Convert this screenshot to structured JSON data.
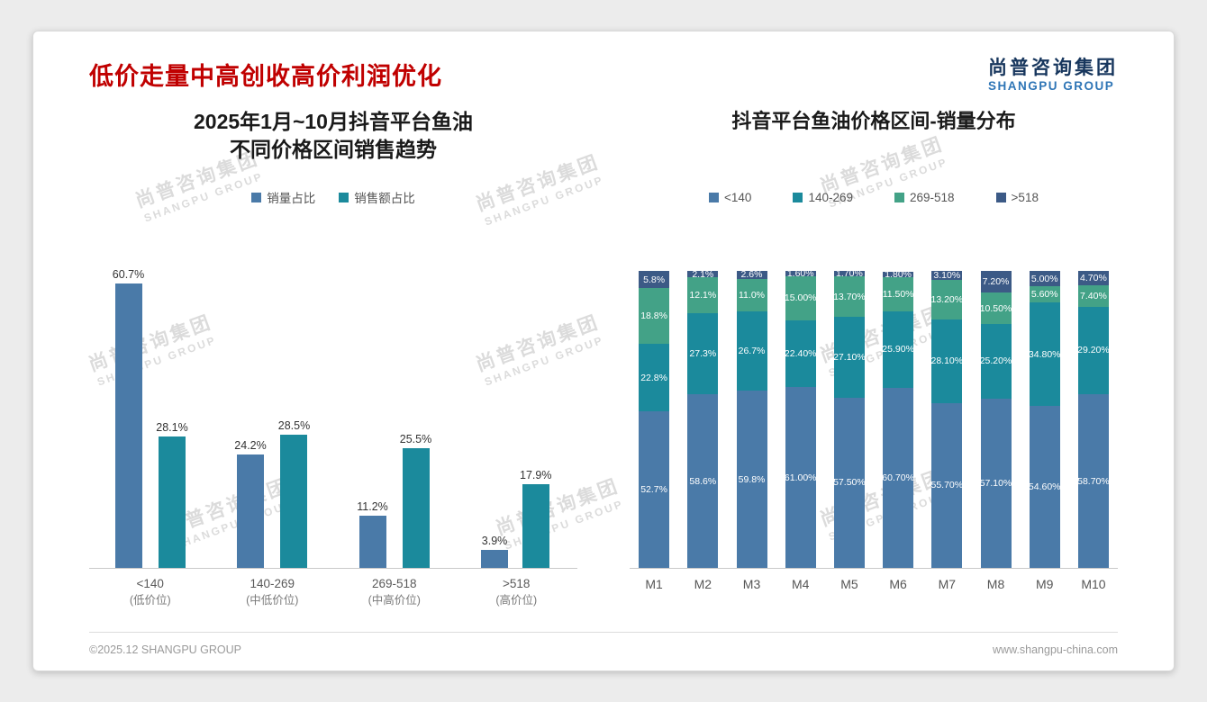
{
  "page": {
    "title": "低价走量中高创收高价利润优化",
    "logo": {
      "cn": "尚普咨询集团",
      "en": "SHANGPU GROUP"
    },
    "watermark": {
      "cn": "尚普咨询集团",
      "en": "SHANGPU GROUP"
    },
    "footer": {
      "left": "©2025.12 SHANGPU GROUP",
      "right": "www.shangpu-china.com"
    }
  },
  "colors": {
    "title_red": "#c00000",
    "logo_navy": "#17365d",
    "logo_blue": "#2e75b6",
    "series_blue": "#4a7aa8",
    "series_teal": "#1b8a9c",
    "series_green": "#43a287",
    "series_navy": "#3c5a86"
  },
  "chart_data": [
    {
      "type": "bar",
      "title_lines": [
        "2025年1月~10月抖音平台鱼油",
        "不同价格区间销售趋势"
      ],
      "categories": [
        "<140",
        "140-269",
        "269-518",
        ">518"
      ],
      "category_sublabels": [
        "(低价位)",
        "(中低价位)",
        "(中高价位)",
        "(高价位)"
      ],
      "series": [
        {
          "name": "销量占比",
          "color": "#4a7aa8",
          "values": [
            60.7,
            24.2,
            11.2,
            3.9
          ]
        },
        {
          "name": "销售额占比",
          "color": "#1b8a9c",
          "values": [
            28.1,
            28.5,
            25.5,
            17.9
          ]
        }
      ],
      "ylim": [
        0,
        65
      ],
      "value_suffix": "%",
      "grid": false,
      "legend_position": "top"
    },
    {
      "type": "stacked-bar",
      "title": "抖音平台鱼油价格区间-销量分布",
      "categories": [
        "M1",
        "M2",
        "M3",
        "M4",
        "M5",
        "M6",
        "M7",
        "M8",
        "M9",
        "M10"
      ],
      "series": [
        {
          "name": "<140",
          "color": "#4a7aa8",
          "values": [
            52.7,
            58.6,
            59.8,
            61.0,
            57.5,
            60.7,
            55.7,
            57.1,
            54.6,
            58.7
          ],
          "labels": [
            "52.7%",
            "58.6%",
            "59.8%",
            "61.00%",
            "57.50%",
            "60.70%",
            "55.70%",
            "57.10%",
            "54.60%",
            "58.70%"
          ]
        },
        {
          "name": "140-269",
          "color": "#1b8a9c",
          "values": [
            22.8,
            27.3,
            26.7,
            22.4,
            27.1,
            25.9,
            28.1,
            25.2,
            34.8,
            29.2
          ],
          "labels": [
            "22.8%",
            "27.3%",
            "26.7%",
            "22.40%",
            "27.10%",
            "25.90%",
            "28.10%",
            "25.20%",
            "34.80%",
            "29.20%"
          ]
        },
        {
          "name": "269-518",
          "color": "#43a287",
          "values": [
            18.8,
            12.1,
            11.0,
            15.0,
            13.7,
            11.5,
            13.2,
            10.5,
            5.6,
            7.4
          ],
          "labels": [
            "18.8%",
            "12.1%",
            "11.0%",
            "15.00%",
            "13.70%",
            "11.50%",
            "13.20%",
            "10.50%",
            "5.60%",
            "7.40%"
          ]
        },
        {
          "name": ">518",
          "color": "#3c5a86",
          "values": [
            5.8,
            2.1,
            2.6,
            1.6,
            1.7,
            1.8,
            3.1,
            7.2,
            5.0,
            4.7
          ],
          "labels": [
            "5.8%",
            "2.1%",
            "2.6%",
            "1.60%",
            "1.70%",
            "1.80%",
            "3.10%",
            "7.20%",
            "5.00%",
            "4.70%"
          ]
        }
      ],
      "ylim": [
        0,
        100
      ],
      "grid": false,
      "legend_position": "top"
    }
  ]
}
